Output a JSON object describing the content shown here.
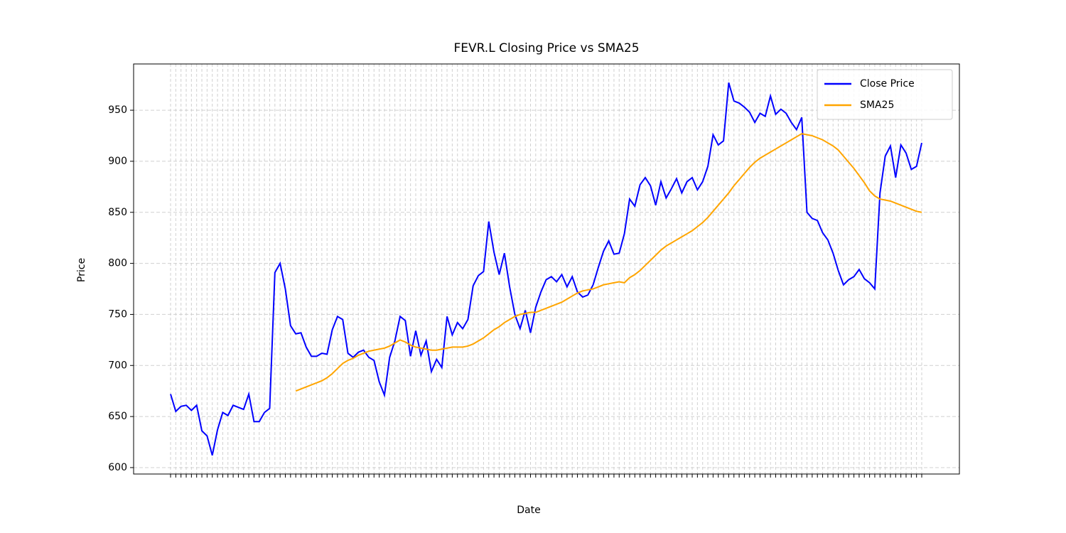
{
  "chart_data": {
    "type": "line",
    "title": "FEVR.L Closing Price vs SMA25",
    "x_label": "Date",
    "y_label": "Price",
    "categories": [
      null,
      null,
      null,
      null,
      null,
      null,
      null,
      null,
      null,
      null,
      null,
      null,
      null,
      null,
      null,
      null,
      null,
      null,
      null,
      null,
      null,
      null,
      null,
      null,
      null,
      null,
      null,
      null,
      null,
      null,
      null,
      null,
      null,
      null,
      null,
      null,
      null,
      null,
      null,
      null,
      null,
      null,
      null,
      null,
      null,
      null,
      null,
      null,
      null,
      null,
      null,
      null,
      null,
      null,
      null,
      null,
      null,
      null,
      null,
      null,
      null,
      null,
      null,
      null,
      null,
      null,
      null,
      null,
      null,
      null,
      null,
      null,
      null,
      null,
      null,
      null,
      null,
      null,
      null,
      null,
      null,
      null,
      null,
      null,
      null,
      null,
      null,
      null,
      null,
      null,
      null,
      null,
      null,
      null,
      null,
      null,
      null,
      null,
      null,
      null,
      null,
      null,
      null,
      null,
      null,
      null,
      null,
      null,
      null,
      null,
      null,
      null,
      null,
      null,
      null,
      null,
      null,
      null,
      null,
      null,
      null,
      null,
      null,
      null,
      null,
      null,
      null,
      null,
      null,
      null,
      null,
      null,
      null,
      null,
      null,
      null,
      null,
      null,
      null,
      null,
      null,
      null,
      null,
      null,
      null
    ],
    "series": [
      {
        "name": "Close Price",
        "color": "#0000ff",
        "values": [
          672,
          655,
          660,
          661,
          656,
          661,
          636,
          631,
          612,
          637,
          654,
          651,
          661,
          659,
          657,
          672,
          645,
          645,
          654,
          658,
          791,
          800,
          775,
          739,
          731,
          732,
          718,
          709,
          709,
          712,
          711,
          735,
          748,
          745,
          712,
          708,
          713,
          715,
          708,
          705,
          684,
          671,
          708,
          724,
          748,
          744,
          709,
          734,
          710,
          724,
          694,
          706,
          698,
          748,
          730,
          742,
          736,
          745,
          778,
          788,
          792,
          841,
          811,
          789,
          810,
          777,
          750,
          736,
          754,
          732,
          757,
          772,
          784,
          787,
          782,
          789,
          777,
          787,
          772,
          767,
          769,
          779,
          796,
          812,
          822,
          809,
          810,
          829,
          863,
          856,
          877,
          884,
          876,
          857,
          880,
          864,
          873,
          883,
          869,
          880,
          884,
          872,
          880,
          895,
          926,
          916,
          920,
          977,
          959,
          957,
          953,
          948,
          938,
          947,
          944,
          964,
          946,
          951,
          947,
          938,
          931,
          943,
          850,
          844,
          842,
          830,
          823,
          810,
          793,
          779,
          784,
          787,
          794,
          785,
          781,
          775,
          869,
          905,
          915,
          884,
          916,
          908,
          892,
          895,
          918
        ]
      },
      {
        "name": "SMA25",
        "color": "#ffa500",
        "values": [
          null,
          null,
          null,
          null,
          null,
          null,
          null,
          null,
          null,
          null,
          null,
          null,
          null,
          null,
          null,
          null,
          null,
          null,
          null,
          null,
          null,
          null,
          null,
          null,
          675,
          677,
          679,
          681,
          683,
          685,
          688,
          692,
          697,
          702,
          705,
          707,
          710,
          712,
          714,
          715,
          716,
          717,
          719,
          722,
          725,
          723,
          720,
          718,
          717,
          716,
          715,
          715,
          716,
          717,
          718,
          718,
          718,
          719,
          721,
          724,
          727,
          731,
          735,
          738,
          742,
          745,
          748,
          750,
          751,
          752,
          752,
          754,
          756,
          758,
          760,
          762,
          765,
          768,
          771,
          773,
          774,
          775,
          777,
          779,
          780,
          781,
          782,
          781,
          786,
          789,
          793,
          798,
          803,
          808,
          813,
          817,
          820,
          823,
          826,
          829,
          832,
          836,
          840,
          845,
          851,
          857,
          863,
          869,
          876,
          882,
          888,
          894,
          899,
          903,
          906,
          909,
          912,
          915,
          918,
          921,
          924,
          927,
          926,
          925,
          923,
          921,
          918,
          915,
          911,
          905,
          899,
          893,
          886,
          879,
          871,
          866,
          863,
          862,
          861,
          859,
          857,
          855,
          853,
          851,
          850
        ]
      }
    ],
    "ylim": [
      593.7,
      995.3
    ],
    "yticks": [
      600,
      650,
      700,
      750,
      800,
      850,
      900,
      950
    ],
    "grid": true,
    "legend": "upper right"
  }
}
